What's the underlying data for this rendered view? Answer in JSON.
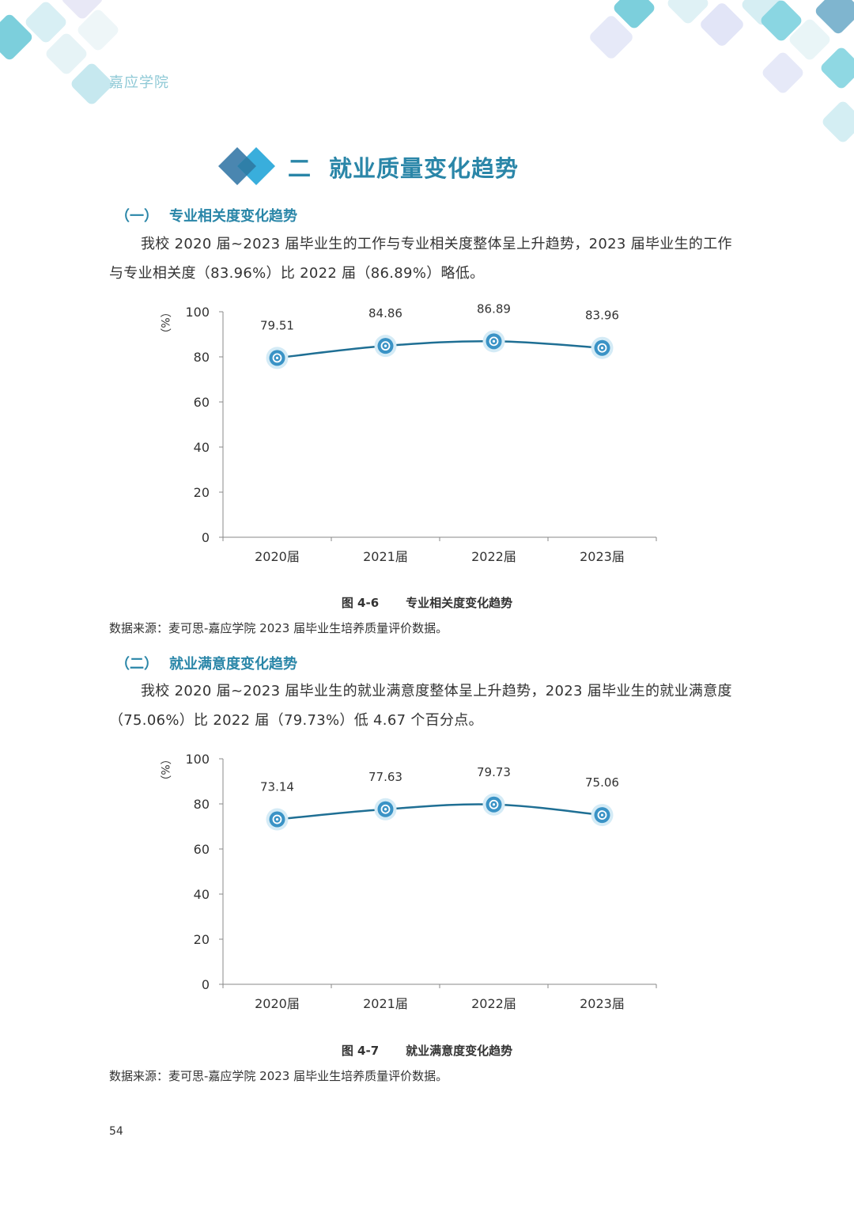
{
  "header": {
    "school_name": "嘉应学院"
  },
  "section": {
    "number": "二",
    "title": "就业质量变化趋势"
  },
  "subsection1": {
    "number": "（一）",
    "title": "专业相关度变化趋势",
    "paragraph": "我校 2020 届~2023 届毕业生的工作与专业相关度整体呈上升趋势，2023 届毕业生的工作与专业相关度（83.96%）比 2022 届（86.89%）略低。",
    "figure_number": "图 4-6",
    "figure_title": "专业相关度变化趋势",
    "source": "数据来源：麦可思-嘉应学院 2023 届毕业生培养质量评价数据。"
  },
  "subsection2": {
    "number": "（二）",
    "title": "就业满意度变化趋势",
    "paragraph": "我校 2020 届~2023 届毕业生的就业满意度整体呈上升趋势，2023 届毕业生的就业满意度（75.06%）比 2022 届（79.73%）低 4.67 个百分点。",
    "figure_number": "图 4-7",
    "figure_title": "就业满意度变化趋势",
    "source": "数据来源：麦可思-嘉应学院 2023 届毕业生培养质量评价数据。"
  },
  "page_number": "54",
  "colors": {
    "accent": "#2a86a8",
    "line": "#1f6f94",
    "marker": "#3a93c6",
    "header": "#8fc9d6"
  },
  "chart_data": [
    {
      "type": "line",
      "categories": [
        "2020届",
        "2021届",
        "2022届",
        "2023届"
      ],
      "values": [
        79.51,
        84.86,
        86.89,
        83.96
      ],
      "data_labels": [
        "79.51",
        "84.86",
        "86.89",
        "83.96"
      ],
      "ylabel": "（%）",
      "ylim": [
        0,
        100
      ],
      "yticks": [
        "0",
        "20",
        "40",
        "60",
        "80",
        "100"
      ],
      "grid": false,
      "legend": "none"
    },
    {
      "type": "line",
      "categories": [
        "2020届",
        "2021届",
        "2022届",
        "2023届"
      ],
      "values": [
        73.14,
        77.63,
        79.73,
        75.06
      ],
      "data_labels": [
        "73.14",
        "77.63",
        "79.73",
        "75.06"
      ],
      "ylabel": "（%）",
      "ylim": [
        0,
        100
      ],
      "yticks": [
        "0",
        "20",
        "40",
        "60",
        "80",
        "100"
      ],
      "grid": false,
      "legend": "none"
    }
  ]
}
